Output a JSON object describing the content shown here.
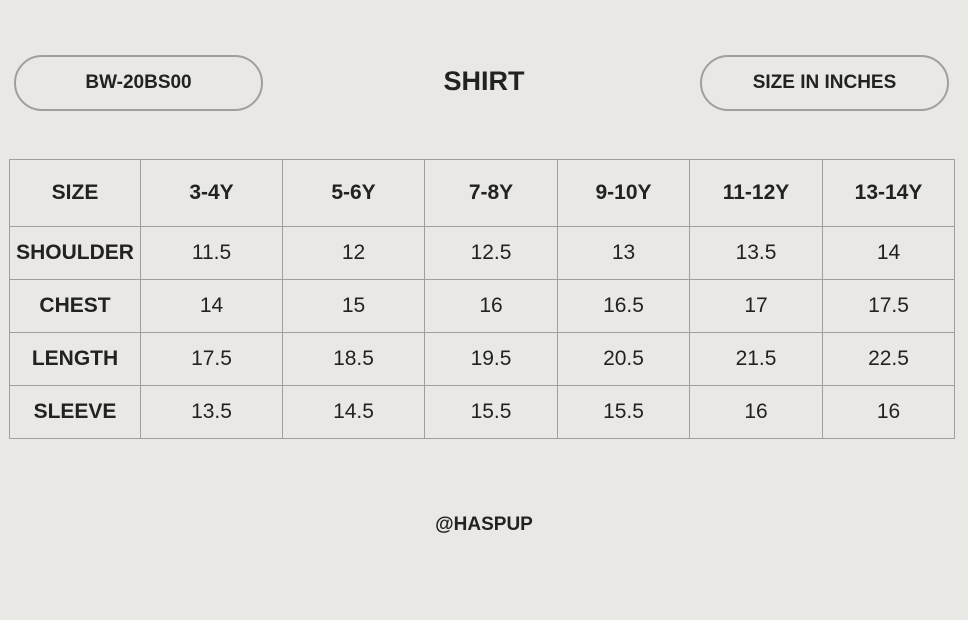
{
  "header": {
    "product_code": "BW-20BS00",
    "title": "SHIRT",
    "unit": "SIZE IN INCHES"
  },
  "table": {
    "columns": [
      "SIZE",
      "3-4Y",
      "5-6Y",
      "7-8Y",
      "9-10Y",
      "11-12Y",
      "13-14Y"
    ],
    "rows": [
      {
        "label": "SHOULDER",
        "values": [
          "11.5",
          "12",
          "12.5",
          "13",
          "13.5",
          "14"
        ]
      },
      {
        "label": "CHEST",
        "values": [
          "14",
          "15",
          "16",
          "16.5",
          "17",
          "17.5"
        ]
      },
      {
        "label": "LENGTH",
        "values": [
          "17.5",
          "18.5",
          "19.5",
          "20.5",
          "21.5",
          "22.5"
        ]
      },
      {
        "label": "SLEEVE",
        "values": [
          "13.5",
          "14.5",
          "15.5",
          "15.5",
          "16",
          "16"
        ]
      }
    ]
  },
  "footer": {
    "handle": "@HASPUP"
  },
  "colors": {
    "background": "#e9e8e5",
    "border": "#a09f9b",
    "text": "#222222"
  }
}
